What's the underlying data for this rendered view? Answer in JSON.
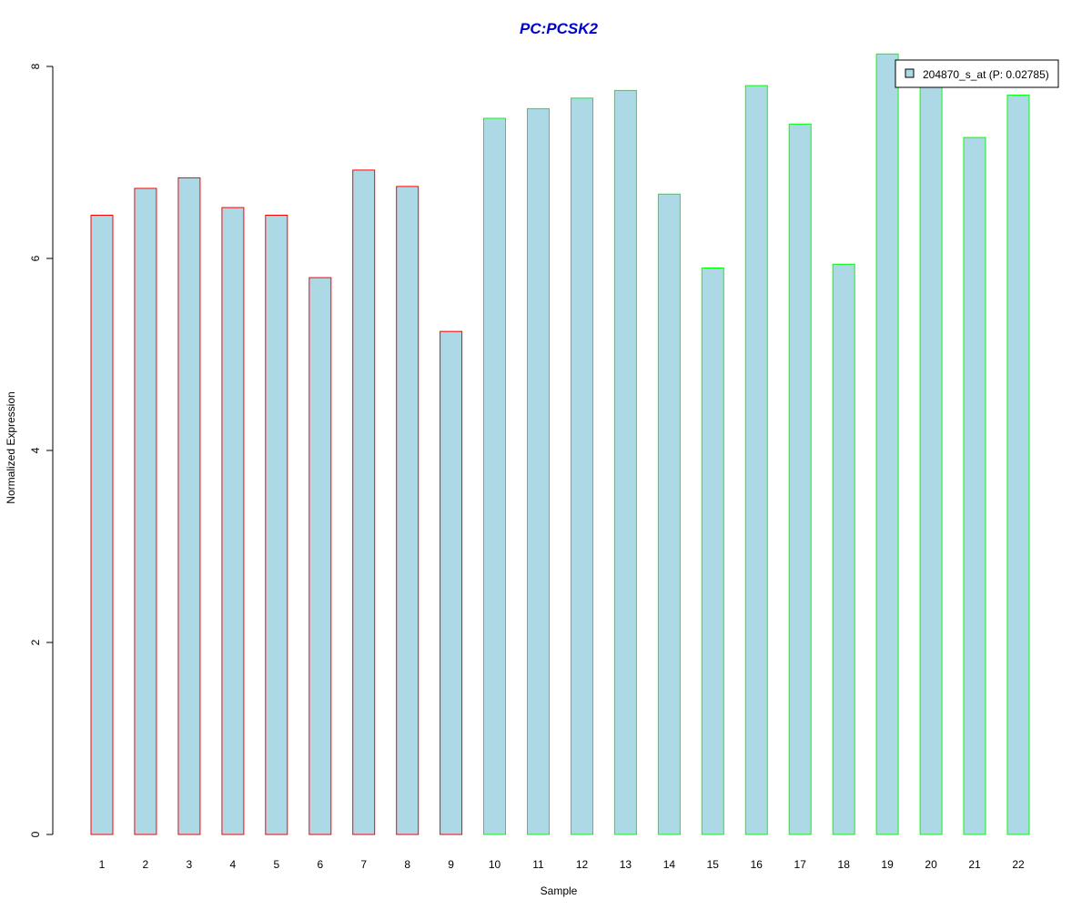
{
  "chart_data": {
    "type": "bar",
    "title": "PC:PCSK2",
    "xlabel": "Sample",
    "ylabel": "Normalized Expression",
    "categories": [
      "1",
      "2",
      "3",
      "4",
      "5",
      "6",
      "7",
      "8",
      "9",
      "10",
      "11",
      "12",
      "13",
      "14",
      "15",
      "16",
      "17",
      "18",
      "19",
      "20",
      "21",
      "22"
    ],
    "series": [
      {
        "name": "204870_s_at (P: 0.02785)",
        "values": [
          6.45,
          6.73,
          6.84,
          6.53,
          6.45,
          5.8,
          6.92,
          6.75,
          5.24,
          7.46,
          7.56,
          7.67,
          7.75,
          6.67,
          5.9,
          7.8,
          7.4,
          5.94,
          8.13,
          7.8,
          7.26,
          7.7
        ]
      }
    ],
    "group_border_colors": [
      "#ff0000",
      "#ff0000",
      "#ff0000",
      "#ff0000",
      "#ff0000",
      "#ff0000",
      "#ff0000",
      "#ff0000",
      "#ff0000",
      "#00ff00",
      "#00ff00",
      "#00ff00",
      "#00ff00",
      "#00ff00",
      "#00ff00",
      "#00ff00",
      "#00ff00",
      "#00ff00",
      "#00ff00",
      "#00ff00",
      "#00ff00",
      "#00ff00"
    ],
    "bar_fill": "#add8e6",
    "title_color": "#0000cc",
    "ylim": [
      0,
      8
    ],
    "yticks": [
      "0",
      "2",
      "4",
      "6",
      "8"
    ],
    "grid": false,
    "legend_position": "top-right"
  }
}
